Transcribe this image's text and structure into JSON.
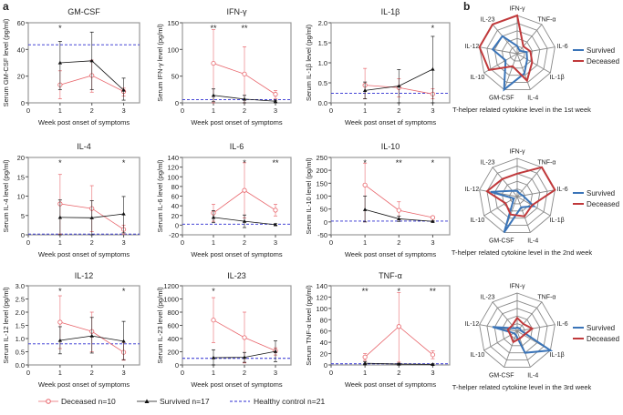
{
  "panel_labels": {
    "a": "a",
    "b": "b"
  },
  "colors": {
    "deceased": "#e8646a",
    "survived": "#111111",
    "healthy": "#2b2bd0",
    "radar_survived": "#3a74b8",
    "radar_deceased": "#c0393b",
    "grid": "#888888"
  },
  "legend": {
    "deceased": "Deceased n=10",
    "survived": "Survived n=17",
    "healthy": "Healthy control n=21"
  },
  "chart_data": [
    {
      "type": "line",
      "title": "GM-CSF",
      "ylabel": "Serum GM-CSF level (pg/ml)",
      "xlabel": "Week post onset of symptoms",
      "xlim": [
        0,
        3.5
      ],
      "xticks": [
        "0",
        "1",
        "2",
        "3"
      ],
      "ylim": [
        0,
        60
      ],
      "yticks": [
        "0",
        "20",
        "40",
        "60"
      ],
      "x": [
        1,
        2,
        3
      ],
      "series": [
        {
          "name": "Deceased",
          "values": [
            13.5,
            20.5,
            8.5
          ],
          "err_high": [
            24,
            32,
            11
          ],
          "err_low": [
            3,
            8,
            5
          ]
        },
        {
          "name": "Survived",
          "values": [
            30,
            31.5,
            9.5
          ],
          "err_high": [
            46,
            53,
            18.5
          ],
          "err_low": [
            10,
            10,
            2
          ]
        }
      ],
      "healthy": 43.5,
      "significance": [
        "*",
        "",
        ""
      ]
    },
    {
      "type": "line",
      "title": "IFN-γ",
      "ylabel": "Serum IFN-γ level (pg/ml)",
      "xlabel": "Week post onset of symptoms",
      "xlim": [
        0,
        3.5
      ],
      "xticks": [
        "0",
        "1",
        "2",
        "3"
      ],
      "ylim": [
        0,
        150
      ],
      "yticks": [
        "0",
        "50",
        "100",
        "150"
      ],
      "x": [
        1,
        2,
        3
      ],
      "series": [
        {
          "name": "Deceased",
          "values": [
            74,
            54,
            16
          ],
          "err_high": [
            137,
            105,
            23
          ],
          "err_low": [
            0,
            0,
            8
          ]
        },
        {
          "name": "Survived",
          "values": [
            14,
            7,
            3
          ],
          "err_high": [
            26,
            14,
            5
          ],
          "err_low": [
            2,
            0,
            0
          ]
        }
      ],
      "healthy": 6,
      "significance": [
        "**",
        "**",
        ""
      ]
    },
    {
      "type": "line",
      "title": "IL-1β",
      "ylabel": "Serum IL-1β level (pg/ml)",
      "xlabel": "Week post onset of symptoms",
      "xlim": [
        0,
        3.5
      ],
      "xticks": [
        "0",
        "1",
        "2",
        "3"
      ],
      "ylim": [
        0,
        2
      ],
      "yticks": [
        "0.0",
        "0.5",
        "1.0",
        "1.5",
        "2.0"
      ],
      "x": [
        1,
        2,
        3
      ],
      "series": [
        {
          "name": "Deceased",
          "values": [
            0.44,
            0.38,
            0.22
          ],
          "err_high": [
            0.86,
            0.6,
            0.35
          ],
          "err_low": [
            0.1,
            0.15,
            0.1
          ]
        },
        {
          "name": "Survived",
          "values": [
            0.31,
            0.42,
            0.84
          ],
          "err_high": [
            0.52,
            0.83,
            1.66
          ],
          "err_low": [
            0.1,
            0,
            0
          ]
        }
      ],
      "healthy": 0.24,
      "significance": [
        "",
        "",
        "*"
      ]
    },
    {
      "type": "line",
      "title": "IL-4",
      "ylabel": "Serum IL-4 level (pg/ml)",
      "xlabel": "Week post onset of symptoms",
      "xlim": [
        0,
        3.5
      ],
      "xticks": [
        "0",
        "1",
        "2",
        "3"
      ],
      "ylim": [
        0,
        20
      ],
      "yticks": [
        "0",
        "5",
        "10",
        "15",
        "20"
      ],
      "x": [
        1,
        2,
        3
      ],
      "series": [
        {
          "name": "Deceased",
          "values": [
            8,
            6.8,
            1.4
          ],
          "err_high": [
            15.6,
            12.7,
            2.5
          ],
          "err_low": [
            0.2,
            0.8,
            0.2
          ]
        },
        {
          "name": "Survived",
          "values": [
            4.5,
            4.4,
            5.4
          ],
          "err_high": [
            9,
            8.8,
            9.9
          ],
          "err_low": [
            0,
            0,
            0.5
          ]
        }
      ],
      "healthy": 0.2,
      "significance": [
        "*",
        "",
        "*"
      ]
    },
    {
      "type": "line",
      "title": "IL-6",
      "ylabel": "Serum IL-6 level (pg/ml)",
      "xlabel": "Week post onset of symptoms",
      "xlim": [
        0,
        3.5
      ],
      "xticks": [
        "0",
        "1",
        "2",
        "3"
      ],
      "ylim": [
        -20,
        140
      ],
      "yticks": [
        "-20",
        "0",
        "20",
        "40",
        "60",
        "80",
        "100",
        "120",
        "140"
      ],
      "x": [
        1,
        2,
        3
      ],
      "series": [
        {
          "name": "Deceased",
          "values": [
            25,
            72,
            31
          ],
          "err_high": [
            43,
            129,
            43
          ],
          "err_low": [
            8,
            15,
            19
          ]
        },
        {
          "name": "Survived",
          "values": [
            16,
            8,
            1
          ],
          "err_high": [
            30,
            21,
            3
          ],
          "err_low": [
            5,
            -5,
            0
          ]
        }
      ],
      "healthy": 2,
      "significance": [
        "",
        "*",
        "**"
      ]
    },
    {
      "type": "line",
      "title": "IL-10",
      "ylabel": "Serum IL-10 level (pg/ml)",
      "xlabel": "Week post onset of symptoms",
      "xlim": [
        0,
        3.5
      ],
      "xticks": [
        "0",
        "1",
        "2",
        "3"
      ],
      "ylim": [
        -50,
        250
      ],
      "yticks": [
        "-50",
        "0",
        "50",
        "100",
        "150",
        "200",
        "250"
      ],
      "x": [
        1,
        2,
        3
      ],
      "series": [
        {
          "name": "Deceased",
          "values": [
            143,
            45,
            17
          ],
          "err_high": [
            228,
            78,
            21
          ],
          "err_low": [
            0,
            8,
            12
          ]
        },
        {
          "name": "Survived",
          "values": [
            48,
            12,
            2
          ],
          "err_high": [
            100,
            22,
            4
          ],
          "err_low": [
            0,
            2,
            0
          ]
        }
      ],
      "healthy": 3,
      "significance": [
        "*",
        "**",
        "*"
      ]
    },
    {
      "type": "line",
      "title": "IL-12",
      "ylabel": "Serum IL-12 level (pg/ml)",
      "xlabel": "Week post onset of symptoms",
      "xlim": [
        0,
        3.5
      ],
      "xticks": [
        "0",
        "1",
        "2",
        "3"
      ],
      "ylim": [
        0,
        3
      ],
      "yticks": [
        "0.0",
        "0.5",
        "1.0",
        "1.5",
        "2.0",
        "2.5",
        "3.0"
      ],
      "x": [
        1,
        2,
        3
      ],
      "series": [
        {
          "name": "Deceased",
          "values": [
            1.62,
            1.27,
            0.48
          ],
          "err_high": [
            2.62,
            2.0,
            0.85
          ],
          "err_low": [
            0.62,
            0.5,
            0.18
          ]
        },
        {
          "name": "Survived",
          "values": [
            0.93,
            1.1,
            0.9
          ],
          "err_high": [
            1.45,
            1.8,
            1.65
          ],
          "err_low": [
            0.42,
            0.45,
            0.2
          ]
        }
      ],
      "healthy": 0.8,
      "significance": [
        "*",
        "",
        "*"
      ]
    },
    {
      "type": "line",
      "title": "IL-23",
      "ylabel": "Serum IL-23 level (pg/ml)",
      "xlabel": "Week post onset of symptoms",
      "xlim": [
        0,
        3.5
      ],
      "xticks": [
        "0",
        "1",
        "2",
        "3"
      ],
      "ylim": [
        0,
        1200
      ],
      "yticks": [
        "0",
        "200",
        "400",
        "600",
        "800",
        "1000",
        "1200"
      ],
      "x": [
        1,
        2,
        3
      ],
      "series": [
        {
          "name": "Deceased",
          "values": [
            680,
            415,
            215
          ],
          "err_high": [
            1020,
            800,
            260
          ],
          "err_low": [
            340,
            30,
            150
          ]
        },
        {
          "name": "Survived",
          "values": [
            110,
            115,
            205
          ],
          "err_high": [
            230,
            190,
            365
          ],
          "err_low": [
            0,
            40,
            50
          ]
        }
      ],
      "healthy": 100,
      "significance": [
        "*",
        "",
        ""
      ]
    },
    {
      "type": "line",
      "title": "TNF-α",
      "ylabel": "Serum TNF-α level (pg/ml)",
      "xlabel": "Week post onset of symptoms",
      "xlim": [
        0,
        3.5
      ],
      "xticks": [
        "0",
        "1",
        "2",
        "3"
      ],
      "ylim": [
        0,
        140
      ],
      "yticks": [
        "0",
        "20",
        "40",
        "60",
        "80",
        "100",
        "120",
        "140"
      ],
      "x": [
        1,
        2,
        3
      ],
      "series": [
        {
          "name": "Deceased",
          "values": [
            14,
            68,
            18
          ],
          "err_high": [
            20,
            128,
            25
          ],
          "err_low": [
            8,
            5,
            11
          ]
        },
        {
          "name": "Survived",
          "values": [
            3,
            1.5,
            1
          ],
          "err_high": [
            6,
            3,
            2
          ],
          "err_low": [
            0,
            0,
            0
          ]
        }
      ],
      "healthy": 2,
      "significance": [
        "**",
        "*",
        "**"
      ]
    },
    {
      "type": "radar",
      "caption": "T-helper related cytokine level in the 1st week",
      "axes": [
        "IFN-γ",
        "TNF-α",
        "IL-6",
        "IL-1β",
        "IL-4",
        "GM-CSF",
        "IL-10",
        "IL-12",
        "IL-23"
      ],
      "rings": 5,
      "series": [
        {
          "name": "Survived",
          "values": [
            0.2,
            0.1,
            0.25,
            0.3,
            0.55,
            1.0,
            0.35,
            0.65,
            0.6
          ]
        },
        {
          "name": "Deceased",
          "values": [
            1.0,
            0.25,
            0.35,
            0.45,
            0.75,
            0.35,
            0.85,
            1.0,
            1.0
          ]
        }
      ]
    },
    {
      "type": "radar",
      "caption": "T-helper related cytokine level in the 2nd week",
      "axes": [
        "IFN-γ",
        "TNF-α",
        "IL-6",
        "IL-1β",
        "IL-4",
        "GM-CSF",
        "IL-10",
        "IL-12",
        "IL-23"
      ],
      "rings": 5,
      "series": [
        {
          "name": "Survived",
          "values": [
            0.15,
            0.1,
            0.15,
            0.5,
            0.3,
            1.0,
            0.1,
            0.7,
            0.2
          ]
        },
        {
          "name": "Deceased",
          "values": [
            0.6,
            1.0,
            1.0,
            0.45,
            0.55,
            0.5,
            0.35,
            0.8,
            0.6
          ]
        }
      ]
    },
    {
      "type": "radar",
      "caption": "T-helper related cytokine level in the 3rd week",
      "axes": [
        "IFN-γ",
        "TNF-α",
        "IL-6",
        "IL-1β",
        "IL-4",
        "GM-CSF",
        "IL-10",
        "IL-12",
        "IL-23"
      ],
      "rings": 5,
      "series": [
        {
          "name": "Survived",
          "values": [
            0.1,
            0.1,
            0.1,
            1.0,
            0.6,
            0.1,
            0.1,
            0.65,
            0.1
          ]
        },
        {
          "name": "Deceased",
          "values": [
            0.35,
            0.25,
            0.4,
            0.2,
            0.2,
            0.3,
            0.2,
            0.25,
            0.2
          ]
        }
      ]
    }
  ]
}
